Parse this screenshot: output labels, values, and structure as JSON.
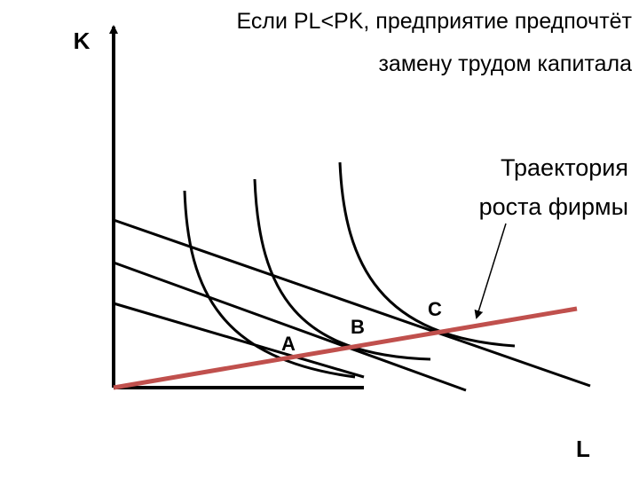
{
  "title": {
    "lines": [
      "Если PL<PK, предприятие предпочтёт",
      "замену трудом капитала"
    ]
  },
  "axes": {
    "y_label": "K",
    "x_label": "L"
  },
  "points": [
    {
      "label": "A"
    },
    {
      "label": "B"
    },
    {
      "label": "C"
    }
  ],
  "annotation": {
    "lines": [
      "Траектория",
      "роста фирмы"
    ]
  }
}
